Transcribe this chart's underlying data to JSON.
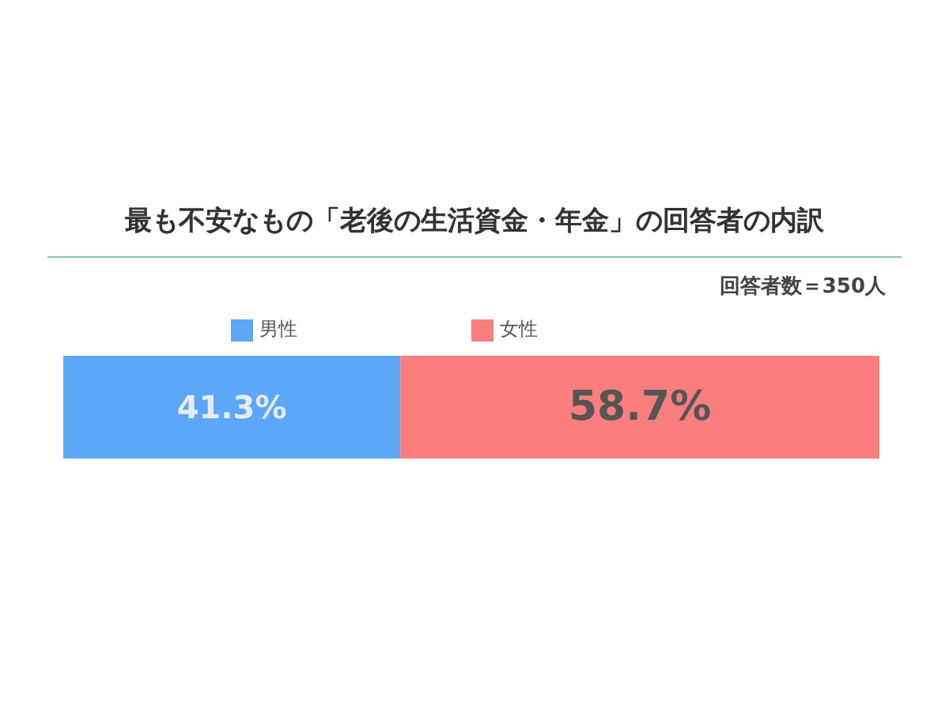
{
  "chart_data": {
    "type": "bar",
    "orientation": "horizontal",
    "stacked": true,
    "title": "最も不安なもの「老後の生活資金・年金」の回答者の内訳",
    "annotations": [
      "回答者数＝350人"
    ],
    "categories": [
      null
    ],
    "legend": "top",
    "series": [
      {
        "name": "男性",
        "color": "#5ca7f7",
        "values": [
          41.3
        ],
        "value_labels": [
          "41.3%"
        ]
      },
      {
        "name": "女性",
        "color": "#fa7e7e",
        "values": [
          58.7
        ],
        "value_labels": [
          "58.7%"
        ]
      }
    ]
  }
}
